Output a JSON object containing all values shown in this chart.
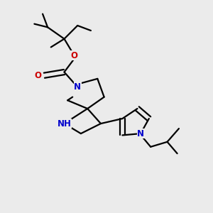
{
  "bg_color": "#ebebeb",
  "line_color": "#000000",
  "N_color": "#0000cc",
  "O_color": "#cc0000",
  "line_width": 1.6,
  "font_size": 8.5,
  "fig_w": 3.0,
  "fig_h": 3.0,
  "dpi": 100,
  "xlim": [
    0.0,
    1.0
  ],
  "ylim": [
    0.0,
    1.0
  ]
}
